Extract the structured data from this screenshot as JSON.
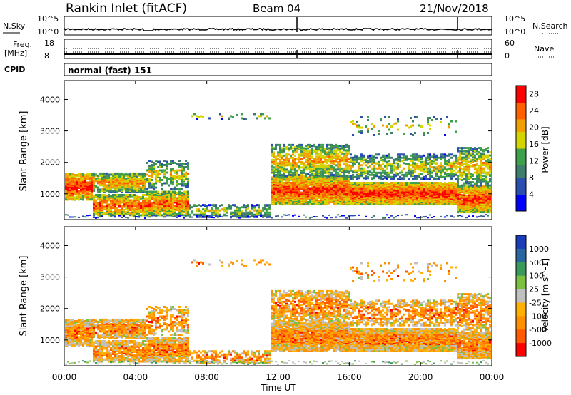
{
  "header": {
    "station": "Rankin Inlet (fitACF)",
    "beam": "Beam 04",
    "date": "21/Nov/2018"
  },
  "strip_panels": {
    "nsky": {
      "label": "N.Sky",
      "ticks": [
        "10^5",
        "10^0"
      ],
      "right_label": "N.Search",
      "right_ticks": [
        "10^5",
        "10^0"
      ]
    },
    "freq": {
      "label_line1": "Freq.",
      "label_line2": "[MHz]",
      "ticks": [
        "18",
        "8"
      ],
      "right_label": "Nave",
      "right_ticks": [
        "60",
        "0"
      ]
    },
    "cpid": {
      "label": "CPID",
      "value": "normal (fast) 151"
    }
  },
  "colors": {
    "power_scale": [
      "#0000ff",
      "#2a4fb0",
      "#3d7f6a",
      "#3fa04a",
      "#d4d400",
      "#f0a000",
      "#ff6000",
      "#ff0000"
    ],
    "velocity_scale": [
      "#ff0000",
      "#ff5a00",
      "#ff9000",
      "#ffb000",
      "#c0c0c0",
      "#7cc040",
      "#3a9a5a",
      "#2a66a0",
      "#1a3cb8"
    ]
  },
  "chart_data": [
    {
      "type": "heatmap",
      "title": "",
      "xlabel": "Time UT",
      "ylabel": "Slant Range [km]",
      "x_ticks": [
        "00:00",
        "04:00",
        "08:00",
        "12:00",
        "16:00",
        "20:00",
        "00:00"
      ],
      "y_ticks": [
        1000,
        2000,
        3000,
        4000
      ],
      "xlim_hours": [
        0,
        24
      ],
      "ylim_km": [
        180,
        4600
      ],
      "colorbar": {
        "label": "Power [dB]",
        "ticks": [
          "4",
          "8",
          "12",
          "16",
          "20",
          "24",
          "28"
        ],
        "range": [
          0,
          30
        ]
      }
    },
    {
      "type": "heatmap",
      "title": "",
      "xlabel": "Time UT",
      "ylabel": "Slant Range [km]",
      "x_ticks": [
        "00:00",
        "04:00",
        "08:00",
        "12:00",
        "16:00",
        "20:00",
        "00:00"
      ],
      "y_ticks": [
        1000,
        2000,
        3000,
        4000
      ],
      "xlim_hours": [
        0,
        24
      ],
      "ylim_km": [
        180,
        4600
      ],
      "colorbar": {
        "label": "Velocity [m s^-1]",
        "ticks": [
          "1000",
          "500",
          "100",
          "25",
          "-25",
          "-100",
          "-500",
          "-1000"
        ]
      }
    }
  ]
}
